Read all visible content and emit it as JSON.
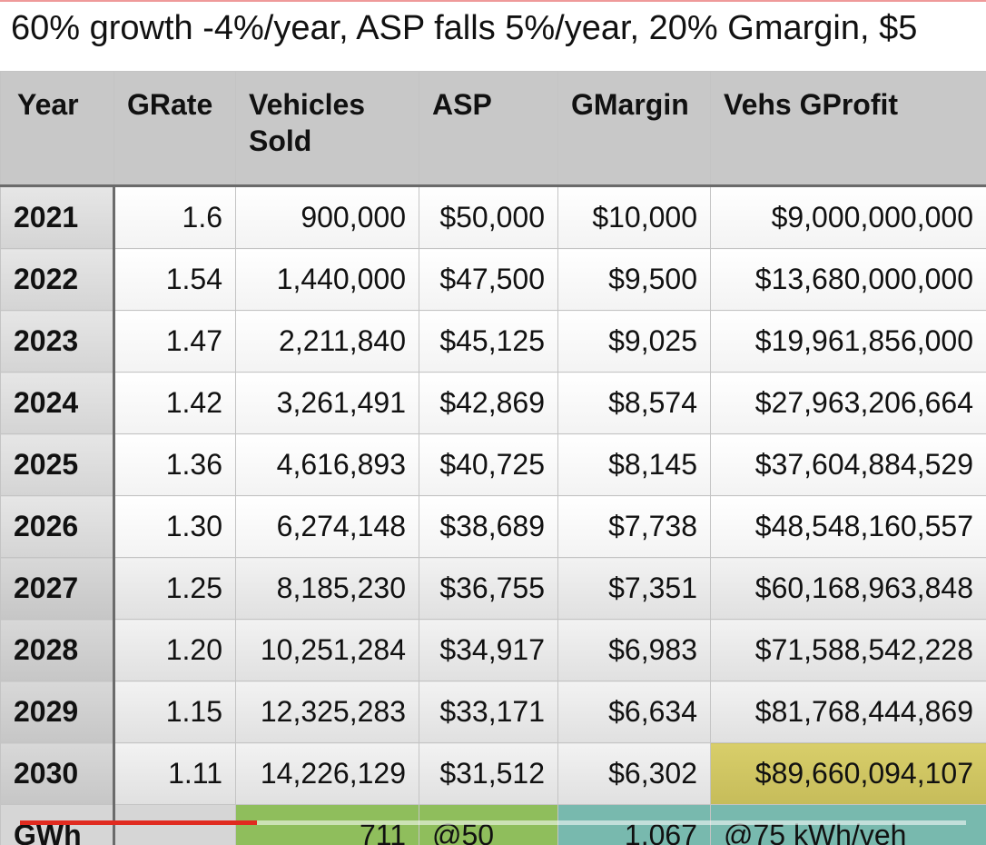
{
  "caption": "60% growth -4%/year, ASP falls 5%/year, 20% Gmargin, $5",
  "table": {
    "headers": [
      "Year",
      "GRate",
      "Vehicles Sold",
      "ASP",
      "GMargin",
      "Vehs GProfit"
    ],
    "header_lines": {
      "vehicles_sold_1": "Vehicles",
      "vehicles_sold_2": "Sold"
    },
    "rows": [
      [
        "2021",
        "1.6",
        "900,000",
        "$50,000",
        "$10,000",
        "$9,000,000,000"
      ],
      [
        "2022",
        "1.54",
        "1,440,000",
        "$47,500",
        "$9,500",
        "$13,680,000,000"
      ],
      [
        "2023",
        "1.47",
        "2,211,840",
        "$45,125",
        "$9,025",
        "$19,961,856,000"
      ],
      [
        "2024",
        "1.42",
        "3,261,491",
        "$42,869",
        "$8,574",
        "$27,963,206,664"
      ],
      [
        "2025",
        "1.36",
        "4,616,893",
        "$40,725",
        "$8,145",
        "$37,604,884,529"
      ],
      [
        "2026",
        "1.30",
        "6,274,148",
        "$38,689",
        "$7,738",
        "$48,548,160,557"
      ],
      [
        "2027",
        "1.25",
        "8,185,230",
        "$36,755",
        "$7,351",
        "$60,168,963,848"
      ],
      [
        "2028",
        "1.20",
        "10,251,284",
        "$34,917",
        "$6,983",
        "$71,588,542,228"
      ],
      [
        "2029",
        "1.15",
        "12,325,283",
        "$33,171",
        "$6,634",
        "$81,768,444,869"
      ],
      [
        "2030",
        "1.11",
        "14,226,129",
        "$31,512",
        "$6,302",
        "$89,660,094,107"
      ]
    ],
    "gwh_row": [
      "GWh",
      "",
      "711",
      "@50",
      "1,067",
      "@75 kWh/veh"
    ]
  },
  "colors": {
    "highlight": "#d8ce6a",
    "green": "#8fbe5c",
    "teal": "#78b9ae",
    "progress": "#e02b20"
  },
  "video_progress": 0.25
}
